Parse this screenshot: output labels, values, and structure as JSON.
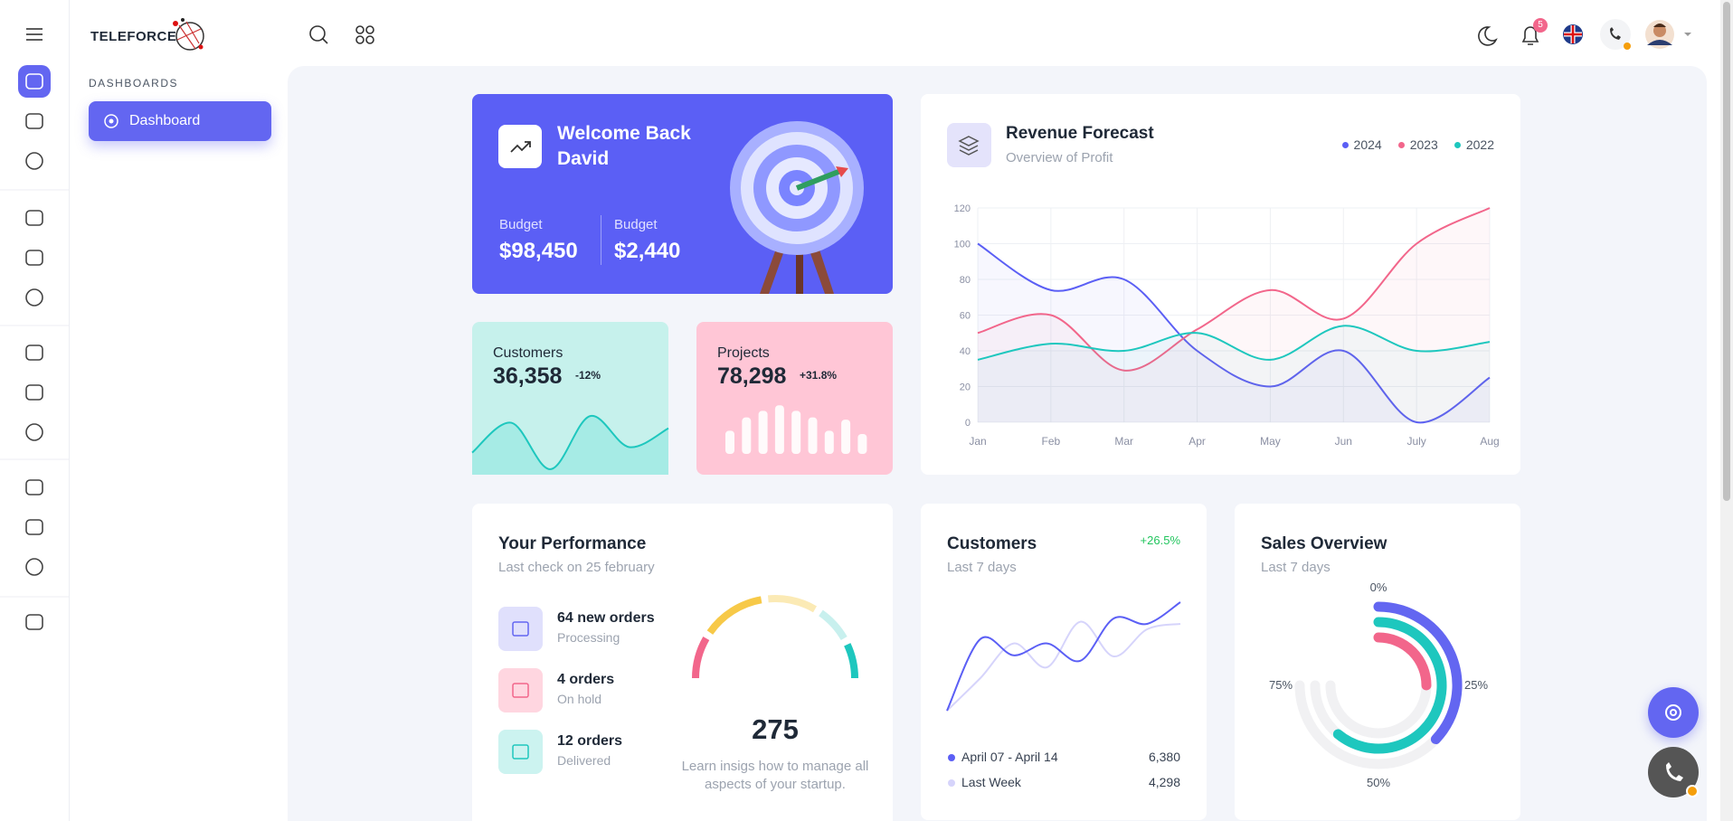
{
  "brand": "TELEFORCE",
  "sidebar": {
    "section": "DASHBOARDS",
    "active_item": "Dashboard"
  },
  "header": {
    "notification_count": 5
  },
  "welcome": {
    "title": "Welcome Back David",
    "budgets": [
      {
        "label": "Budget",
        "amount": "$98,450"
      },
      {
        "label": "Budget",
        "amount": "$2,440"
      }
    ]
  },
  "customers_card": {
    "label": "Customers",
    "value": "36,358",
    "change": "-12%",
    "wave": [
      20,
      47,
      5,
      53,
      25,
      42
    ]
  },
  "projects_card": {
    "label": "Projects",
    "value": "78,298",
    "change": "+31.8%",
    "bars": [
      21,
      33,
      39,
      44,
      39,
      33,
      21,
      31,
      18
    ]
  },
  "chart_data": {
    "type": "line",
    "title": "Revenue Forecast",
    "subtitle": "Overview of Profit",
    "categories": [
      "Jan",
      "Feb",
      "Mar",
      "Apr",
      "May",
      "Jun",
      "July",
      "Aug"
    ],
    "series": [
      {
        "name": "2024",
        "color": "#5b5ff5",
        "values": [
          100,
          74,
          80,
          40,
          20,
          40,
          0,
          25
        ]
      },
      {
        "name": "2023",
        "color": "#f2668b",
        "values": [
          50,
          60,
          29,
          52,
          74,
          58,
          100,
          120
        ]
      },
      {
        "name": "2022",
        "color": "#1ec7be",
        "values": [
          35,
          44,
          40,
          50,
          35,
          54,
          40,
          45
        ]
      }
    ],
    "ylim": [
      0,
      120
    ],
    "yticks": [
      0,
      20,
      40,
      60,
      80,
      100,
      120
    ],
    "grid": true
  },
  "performance": {
    "title": "Your Performance",
    "subtitle": "Last check on 25 february",
    "items": [
      {
        "title": "64 new orders",
        "status": "Processing"
      },
      {
        "title": "4 orders",
        "status": "On hold"
      },
      {
        "title": "12 orders",
        "status": "Delivered"
      }
    ],
    "score": 275,
    "note": "Learn insigs how to manage all aspects of your startup."
  },
  "customers_week": {
    "title": "Customers",
    "change": "+26.5%",
    "subtitle": "Last 7 days",
    "series": [
      {
        "name": "April 07 - April 14",
        "total": "6,380",
        "color": "#5b5ff5",
        "values": [
          0,
          66,
          51,
          62,
          46,
          85,
          80,
          100
        ]
      },
      {
        "name": "Last Week",
        "total": "4,298",
        "color": "#d6d4fb",
        "values": [
          0,
          30,
          62,
          40,
          82,
          50,
          75,
          80
        ]
      }
    ]
  },
  "sales": {
    "title": "Sales Overview",
    "subtitle": "Last 7 days",
    "ticks": [
      {
        "value": 0,
        "label": "0%"
      },
      {
        "value": 25,
        "label": "25%"
      },
      {
        "value": 50,
        "label": "50%"
      },
      {
        "value": 75,
        "label": "75%"
      }
    ],
    "rings": [
      {
        "color": "#6366f1",
        "value": 37
      },
      {
        "color": "#1ec7be",
        "value": 61
      },
      {
        "color": "#f2668b",
        "value": 25
      }
    ]
  }
}
